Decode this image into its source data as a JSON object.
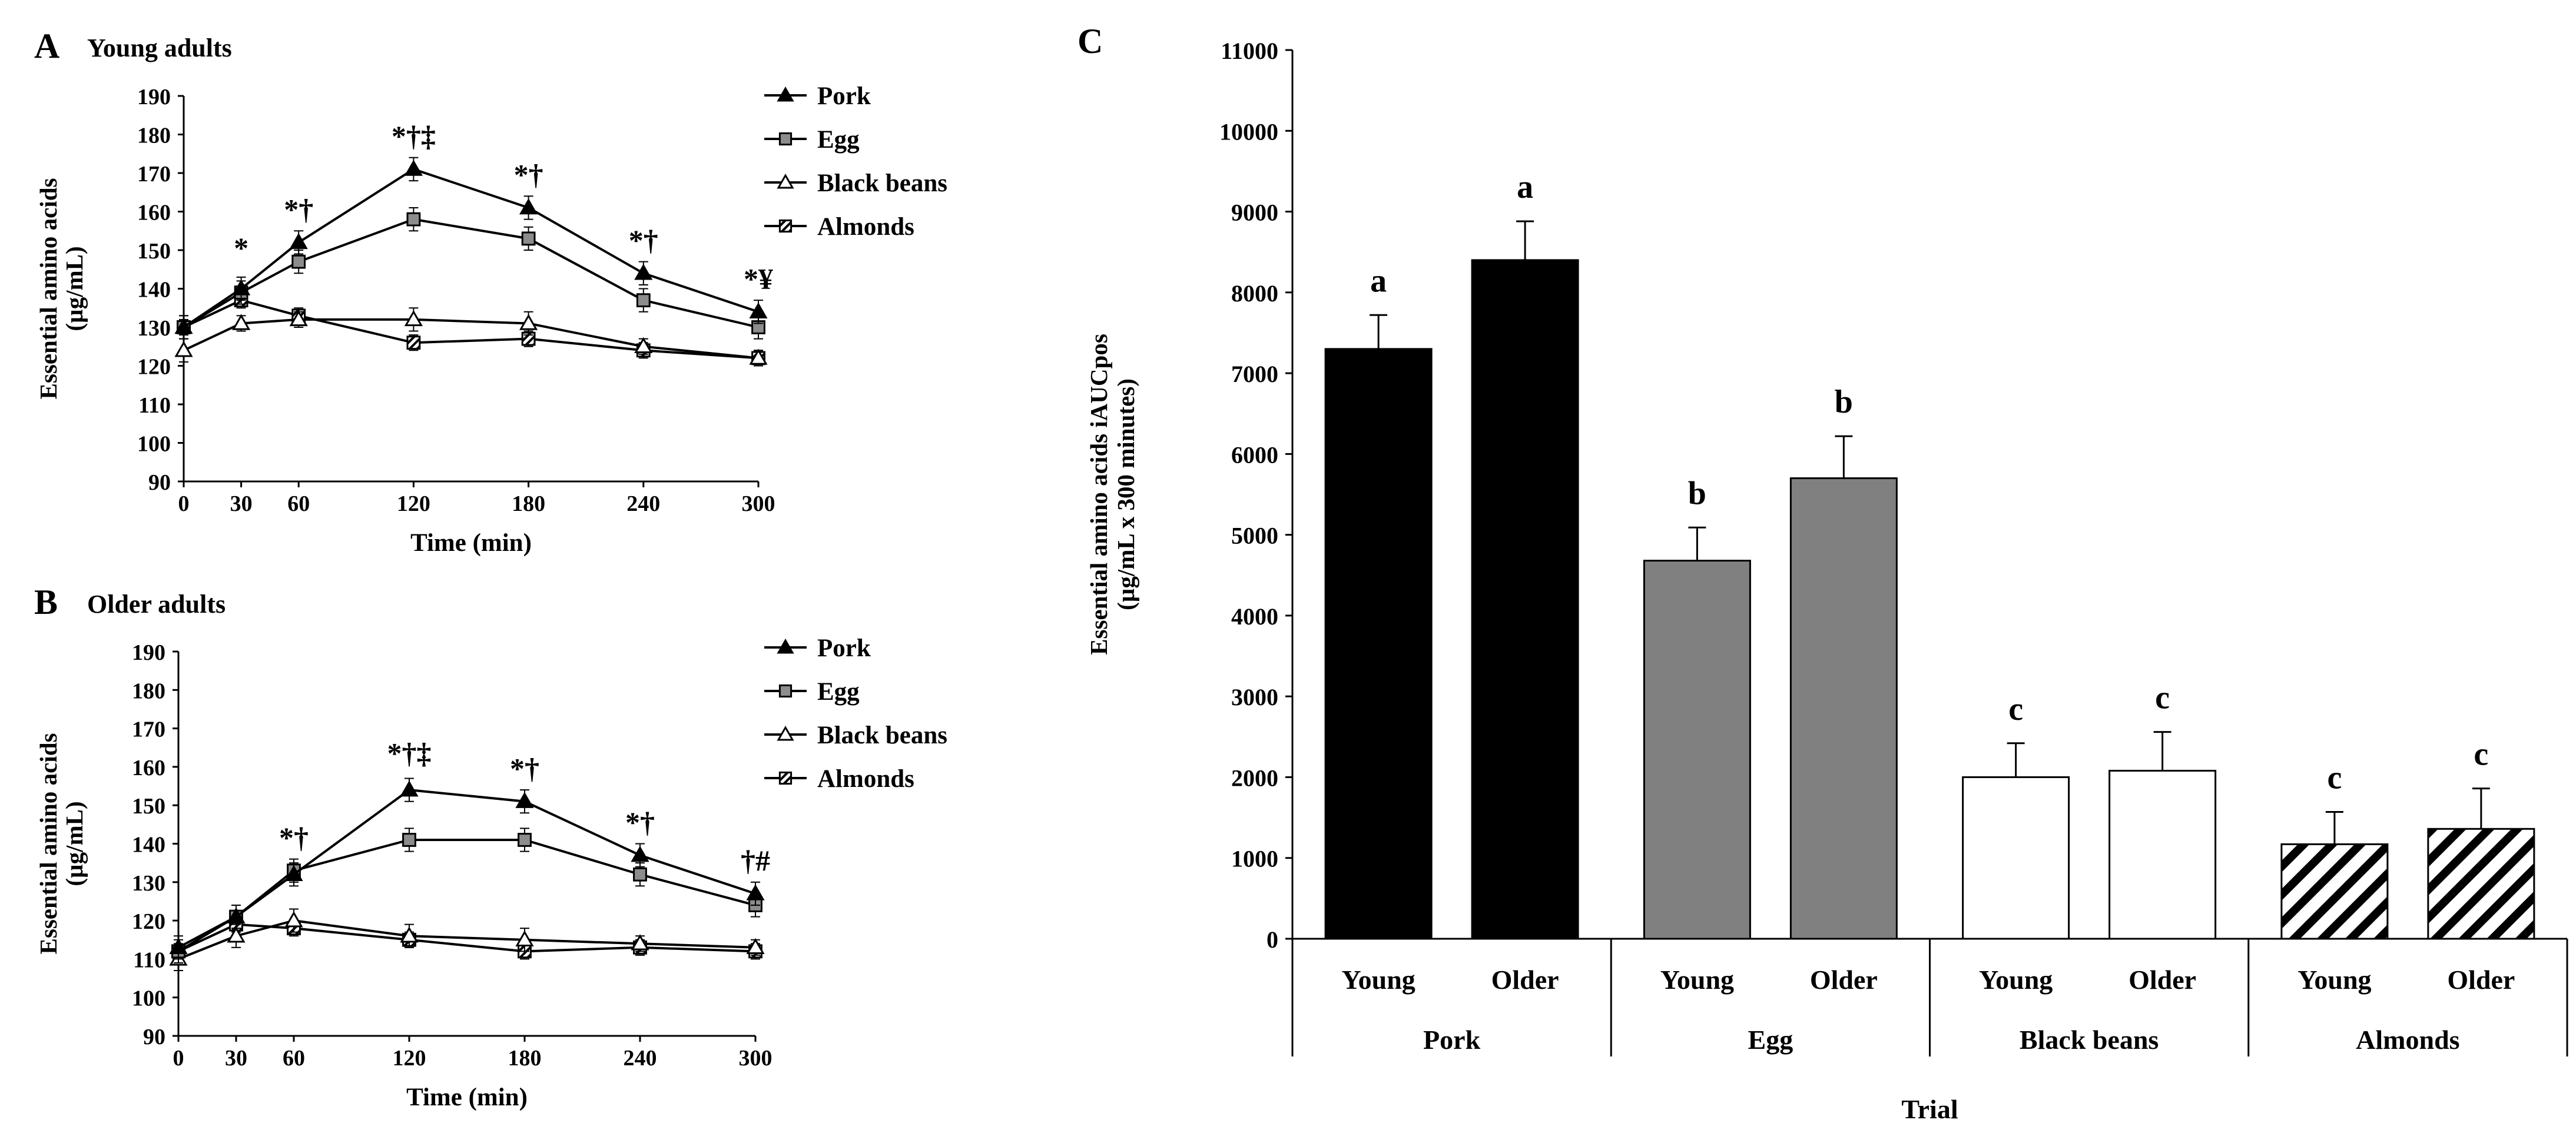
{
  "colors": {
    "axis": "#000000",
    "pork_bar": "#000000",
    "egg_bar": "#808080",
    "black_beans_bar": "#ffffff",
    "marker_egg": "#8c8c8c"
  },
  "chart_data": [
    {
      "panel_label": "A",
      "title": "Young adults",
      "type": "line",
      "xlabel": "Time (min)",
      "ylabel": "Essential amino acids",
      "ylabel_unit": "(µg/mL)",
      "x": [
        0,
        30,
        60,
        120,
        180,
        240,
        300
      ],
      "x_tick_labels": [
        "0",
        "30",
        "60",
        "120",
        "180",
        "240",
        "300"
      ],
      "xlim": [
        0,
        300
      ],
      "ylim": [
        90,
        190
      ],
      "y_ticks": [
        90,
        100,
        110,
        120,
        130,
        140,
        150,
        160,
        170,
        180,
        190
      ],
      "series": [
        {
          "name": "Pork",
          "marker": "triangle-filled",
          "values": [
            130,
            140,
            152,
            171,
            161,
            144,
            134
          ],
          "errors": [
            3,
            3,
            3,
            3,
            3,
            3,
            3
          ]
        },
        {
          "name": "Egg",
          "marker": "square-gray",
          "values": [
            130,
            139,
            147,
            158,
            153,
            137,
            130
          ],
          "errors": [
            3,
            3,
            3,
            3,
            3,
            3,
            3
          ]
        },
        {
          "name": "Black beans",
          "marker": "triangle-open",
          "values": [
            124,
            131,
            132,
            132,
            131,
            125,
            122
          ],
          "errors": [
            3,
            2,
            2,
            3,
            3,
            2,
            2
          ]
        },
        {
          "name": "Almonds",
          "marker": "square-hatched",
          "values": [
            130,
            137,
            133,
            126,
            127,
            124,
            122
          ],
          "errors": [
            2,
            2,
            2,
            2,
            2,
            2,
            2
          ]
        }
      ],
      "annotations": [
        {
          "x": 30,
          "text": "*",
          "y": 148
        },
        {
          "x": 60,
          "text": "*†",
          "y": 158
        },
        {
          "x": 120,
          "text": "*†‡",
          "y": 177
        },
        {
          "x": 180,
          "text": "*†",
          "y": 167
        },
        {
          "x": 240,
          "text": "*†",
          "y": 150
        },
        {
          "x": 300,
          "text": "*¥",
          "y": 140
        }
      ],
      "legend": "top-right"
    },
    {
      "panel_label": "B",
      "title": "Older adults",
      "type": "line",
      "xlabel": "Time (min)",
      "ylabel": "Essential amino acids",
      "ylabel_unit": "(µg/mL)",
      "x": [
        0,
        30,
        60,
        120,
        180,
        240,
        300
      ],
      "x_tick_labels": [
        "0",
        "30",
        "60",
        "120",
        "180",
        "240",
        "300"
      ],
      "xlim": [
        0,
        300
      ],
      "ylim": [
        90,
        190
      ],
      "y_ticks": [
        90,
        100,
        110,
        120,
        130,
        140,
        150,
        160,
        170,
        180,
        190
      ],
      "series": [
        {
          "name": "Pork",
          "marker": "triangle-filled",
          "values": [
            113,
            121,
            132,
            154,
            151,
            137,
            127
          ],
          "errors": [
            3,
            3,
            3,
            3,
            3,
            3,
            3
          ]
        },
        {
          "name": "Egg",
          "marker": "square-gray",
          "values": [
            112,
            121,
            133,
            141,
            141,
            132,
            124
          ],
          "errors": [
            3,
            3,
            3,
            3,
            3,
            3,
            3
          ]
        },
        {
          "name": "Black beans",
          "marker": "triangle-open",
          "values": [
            110,
            116,
            120,
            116,
            115,
            114,
            113
          ],
          "errors": [
            3,
            3,
            3,
            3,
            3,
            2,
            2
          ]
        },
        {
          "name": "Almonds",
          "marker": "square-hatched",
          "values": [
            112,
            119,
            118,
            115,
            112,
            113,
            112
          ],
          "errors": [
            2,
            2,
            2,
            2,
            2,
            2,
            2
          ]
        }
      ],
      "annotations": [
        {
          "x": 60,
          "text": "*†",
          "y": 139
        },
        {
          "x": 120,
          "text": "*†‡",
          "y": 161
        },
        {
          "x": 180,
          "text": "*†",
          "y": 157
        },
        {
          "x": 240,
          "text": "*†",
          "y": 143
        },
        {
          "x": 300,
          "text": "†#",
          "y": 133
        }
      ],
      "legend": "top-right"
    },
    {
      "panel_label": "C",
      "title": "",
      "type": "bar",
      "xlabel": "Trial",
      "ylabel": "Essential amino acids iAUCpos",
      "ylabel_unit": "(µg/mL x 300 minutes)",
      "ylim": [
        0,
        11000
      ],
      "y_ticks": [
        0,
        1000,
        2000,
        3000,
        4000,
        5000,
        6000,
        7000,
        8000,
        9000,
        10000,
        11000
      ],
      "groups": [
        "Pork",
        "Egg",
        "Black beans",
        "Almonds"
      ],
      "subcategories": [
        "Young",
        "Older"
      ],
      "series": [
        {
          "group": "Pork",
          "fill": "solid-black",
          "values": [
            7300,
            8400
          ],
          "errors": [
            420,
            480
          ],
          "letters": [
            "a",
            "a"
          ]
        },
        {
          "group": "Egg",
          "fill": "solid-gray",
          "values": [
            4680,
            5700
          ],
          "errors": [
            410,
            520
          ],
          "letters": [
            "b",
            "b"
          ]
        },
        {
          "group": "Black beans",
          "fill": "white",
          "values": [
            2000,
            2080
          ],
          "errors": [
            420,
            480
          ],
          "letters": [
            "c",
            "c"
          ]
        },
        {
          "group": "Almonds",
          "fill": "diagonal-hatch",
          "values": [
            1170,
            1360
          ],
          "errors": [
            400,
            500
          ],
          "letters": [
            "c",
            "c"
          ]
        }
      ]
    }
  ]
}
